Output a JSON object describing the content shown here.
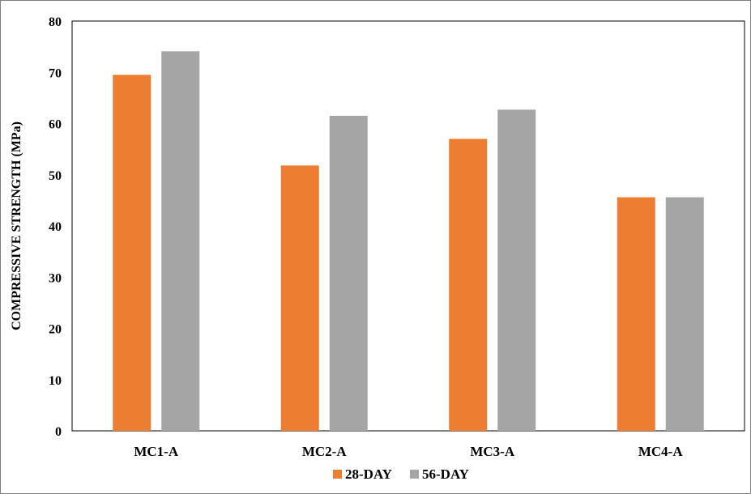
{
  "chart_data": {
    "type": "bar",
    "title": "",
    "xlabel": "",
    "ylabel": "COMPRESSIVE STRENGTH (MPa)",
    "ylim": [
      0,
      80
    ],
    "yticks": [
      0,
      10,
      20,
      30,
      40,
      50,
      60,
      70,
      80
    ],
    "categories": [
      "MC1-A",
      "MC2-A",
      "MC3-A",
      "MC4-A"
    ],
    "series": [
      {
        "name": "28-DAY",
        "color": "#ED7D31",
        "values": [
          69.5,
          51.8,
          57.0,
          45.6
        ]
      },
      {
        "name": "56-DAY",
        "color": "#A5A5A5",
        "values": [
          74.1,
          61.5,
          62.7,
          45.6
        ]
      }
    ],
    "grid": false,
    "legend_position": "bottom"
  }
}
